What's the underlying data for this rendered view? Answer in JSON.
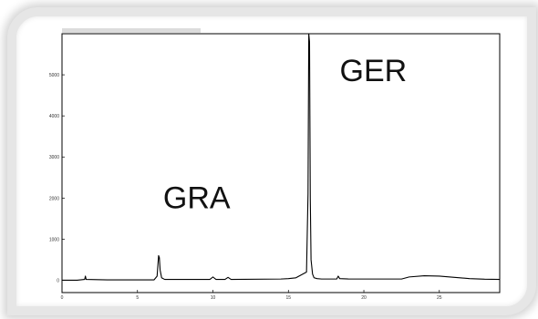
{
  "chart_data": {
    "type": "line",
    "title": "",
    "xlabel": "",
    "ylabel": "",
    "xlim": [
      0,
      29
    ],
    "ylim": [
      -300,
      6000
    ],
    "grid": false,
    "legend": "none",
    "line_color": "#000000",
    "x_ticks": [
      0,
      5,
      10,
      15,
      20,
      25
    ],
    "y_ticks": [
      0,
      1000,
      2000,
      3000,
      4000,
      5000
    ],
    "annotations": [
      {
        "text": "GRA",
        "x": 6.7,
        "y": 1750
      },
      {
        "text": "GER",
        "x": 18.4,
        "y": 4850
      }
    ],
    "series": [
      {
        "x": [
          0,
          1.0,
          1.5,
          1.55,
          1.6,
          3.0,
          6.1,
          6.3,
          6.4,
          6.45,
          6.5,
          6.6,
          6.8,
          7.2,
          9.8,
          10.0,
          10.2,
          10.8,
          11.0,
          11.2,
          14.5,
          15.0,
          15.5,
          16.2,
          16.3,
          16.35,
          16.4,
          16.45,
          16.5,
          16.6,
          16.7,
          16.9,
          17.2,
          18.2,
          18.3,
          18.4,
          19.0,
          22.5,
          23.0,
          24.0,
          25.0,
          26.0,
          27.0,
          28.0,
          29.0
        ],
        "y": [
          0,
          0,
          20,
          100,
          20,
          10,
          10,
          100,
          600,
          550,
          250,
          60,
          20,
          20,
          20,
          80,
          20,
          20,
          70,
          20,
          30,
          40,
          60,
          200,
          2100,
          6000,
          5800,
          2000,
          500,
          150,
          60,
          40,
          30,
          30,
          100,
          40,
          30,
          30,
          80,
          110,
          100,
          70,
          40,
          25,
          20
        ]
      }
    ]
  }
}
